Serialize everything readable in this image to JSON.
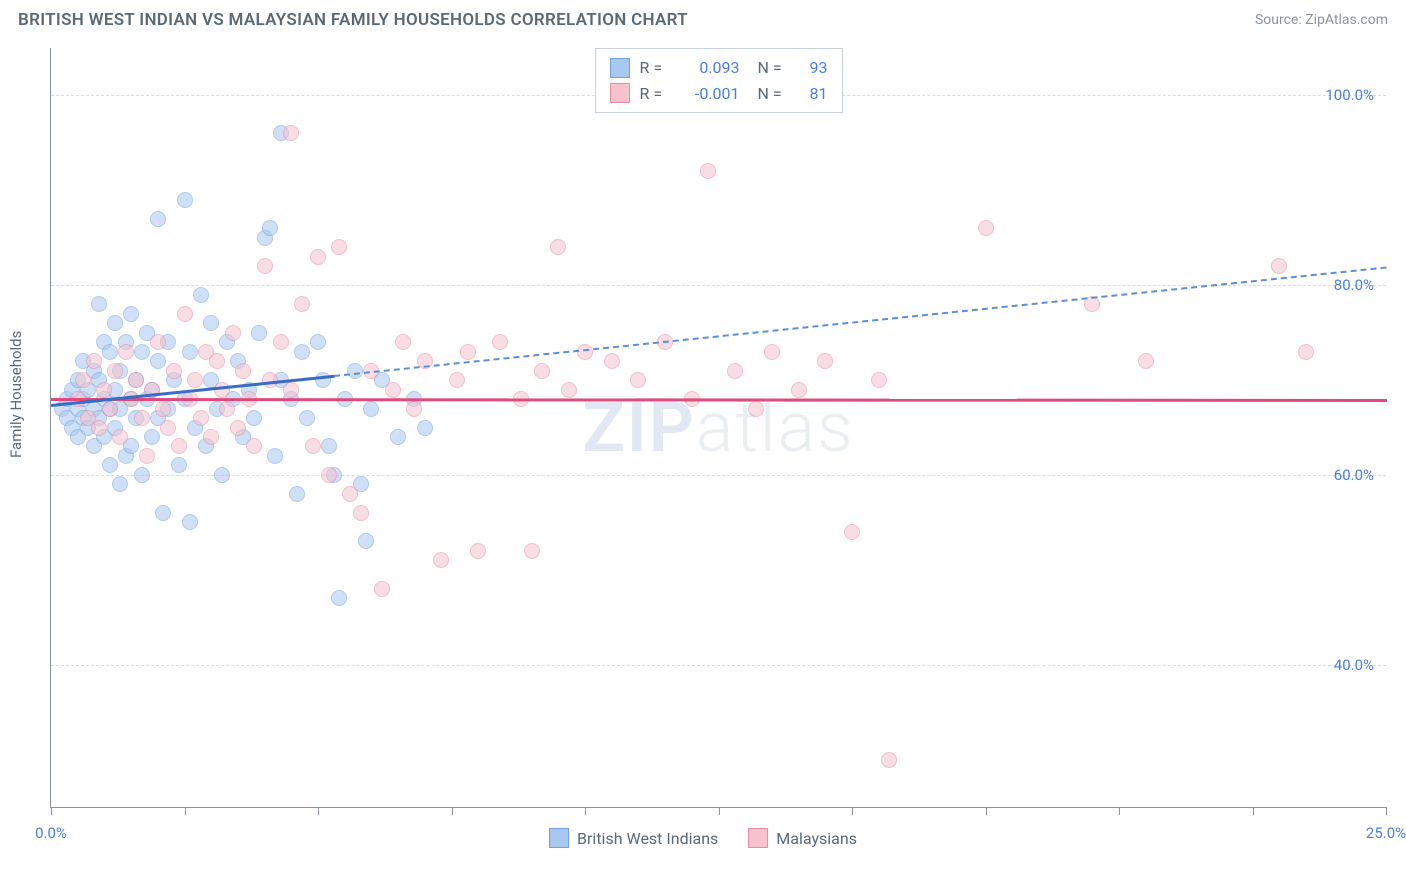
{
  "header": {
    "title": "BRITISH WEST INDIAN VS MALAYSIAN FAMILY HOUSEHOLDS CORRELATION CHART",
    "source": "Source: ZipAtlas.com"
  },
  "watermark": {
    "zip": "ZIP",
    "atlas": "atlas"
  },
  "chart": {
    "type": "scatter",
    "ylabel": "Family Households",
    "xlim": [
      0,
      25
    ],
    "ylim": [
      25,
      105
    ],
    "ytick_values": [
      40,
      60,
      80,
      100
    ],
    "ytick_labels": [
      "40.0%",
      "60.0%",
      "80.0%",
      "100.0%"
    ],
    "xtick_values": [
      0,
      2.5,
      5,
      7.5,
      10,
      12.5,
      15,
      17.5,
      20,
      22.5,
      25
    ],
    "xtick_left_label": "0.0%",
    "xtick_right_label": "25.0%",
    "series": [
      {
        "name": "British West Indians",
        "color_fill": "#a8c8ef",
        "color_stroke": "#6ea3e0",
        "R": "0.093",
        "N": "93",
        "trend": {
          "y_at_x0": 67.5,
          "y_at_x25": 82,
          "solid_until_x": 5.3
        },
        "points": [
          [
            0.2,
            67
          ],
          [
            0.3,
            68
          ],
          [
            0.3,
            66
          ],
          [
            0.4,
            69
          ],
          [
            0.4,
            65
          ],
          [
            0.5,
            67
          ],
          [
            0.5,
            70
          ],
          [
            0.5,
            64
          ],
          [
            0.6,
            68
          ],
          [
            0.6,
            66
          ],
          [
            0.6,
            72
          ],
          [
            0.7,
            65
          ],
          [
            0.7,
            69
          ],
          [
            0.8,
            67
          ],
          [
            0.8,
            63
          ],
          [
            0.8,
            71
          ],
          [
            0.9,
            78
          ],
          [
            0.9,
            66
          ],
          [
            0.9,
            70
          ],
          [
            1.0,
            68
          ],
          [
            1.0,
            74
          ],
          [
            1.0,
            64
          ],
          [
            1.1,
            73
          ],
          [
            1.1,
            67
          ],
          [
            1.1,
            61
          ],
          [
            1.2,
            76
          ],
          [
            1.2,
            69
          ],
          [
            1.2,
            65
          ],
          [
            1.3,
            71
          ],
          [
            1.3,
            67
          ],
          [
            1.3,
            59
          ],
          [
            1.4,
            74
          ],
          [
            1.4,
            62
          ],
          [
            1.5,
            68
          ],
          [
            1.5,
            77
          ],
          [
            1.5,
            63
          ],
          [
            1.6,
            70
          ],
          [
            1.6,
            66
          ],
          [
            1.7,
            73
          ],
          [
            1.7,
            60
          ],
          [
            1.8,
            68
          ],
          [
            1.8,
            75
          ],
          [
            1.9,
            64
          ],
          [
            1.9,
            69
          ],
          [
            2.0,
            87
          ],
          [
            2.0,
            66
          ],
          [
            2.0,
            72
          ],
          [
            2.1,
            56
          ],
          [
            2.2,
            74
          ],
          [
            2.2,
            67
          ],
          [
            2.3,
            70
          ],
          [
            2.4,
            61
          ],
          [
            2.5,
            68
          ],
          [
            2.5,
            89
          ],
          [
            2.6,
            73
          ],
          [
            2.6,
            55
          ],
          [
            2.7,
            65
          ],
          [
            2.8,
            79
          ],
          [
            2.9,
            63
          ],
          [
            3.0,
            70
          ],
          [
            3.0,
            76
          ],
          [
            3.1,
            67
          ],
          [
            3.2,
            60
          ],
          [
            3.3,
            74
          ],
          [
            3.4,
            68
          ],
          [
            3.5,
            72
          ],
          [
            3.6,
            64
          ],
          [
            3.7,
            69
          ],
          [
            3.8,
            66
          ],
          [
            3.9,
            75
          ],
          [
            4.0,
            85
          ],
          [
            4.1,
            86
          ],
          [
            4.2,
            62
          ],
          [
            4.3,
            70
          ],
          [
            4.3,
            96
          ],
          [
            4.5,
            68
          ],
          [
            4.6,
            58
          ],
          [
            4.7,
            73
          ],
          [
            4.8,
            66
          ],
          [
            5.0,
            74
          ],
          [
            5.1,
            70
          ],
          [
            5.2,
            63
          ],
          [
            5.3,
            60
          ],
          [
            5.4,
            47
          ],
          [
            5.5,
            68
          ],
          [
            5.7,
            71
          ],
          [
            5.8,
            59
          ],
          [
            5.9,
            53
          ],
          [
            6.0,
            67
          ],
          [
            6.2,
            70
          ],
          [
            6.5,
            64
          ],
          [
            6.8,
            68
          ],
          [
            7.0,
            65
          ]
        ]
      },
      {
        "name": "Malaysians",
        "color_fill": "#f5c2ce",
        "color_stroke": "#e88ba3",
        "R": "-0.001",
        "N": "81",
        "trend": {
          "y_at_x0": 68.2,
          "y_at_x25": 68.1,
          "solid_until_x": 25
        },
        "trend_line_color": "#e04a7a",
        "points": [
          [
            0.5,
            68
          ],
          [
            0.6,
            70
          ],
          [
            0.7,
            66
          ],
          [
            0.8,
            72
          ],
          [
            0.9,
            65
          ],
          [
            1.0,
            69
          ],
          [
            1.1,
            67
          ],
          [
            1.2,
            71
          ],
          [
            1.3,
            64
          ],
          [
            1.4,
            73
          ],
          [
            1.5,
            68
          ],
          [
            1.6,
            70
          ],
          [
            1.7,
            66
          ],
          [
            1.8,
            62
          ],
          [
            1.9,
            69
          ],
          [
            2.0,
            74
          ],
          [
            2.1,
            67
          ],
          [
            2.2,
            65
          ],
          [
            2.3,
            71
          ],
          [
            2.4,
            63
          ],
          [
            2.5,
            77
          ],
          [
            2.6,
            68
          ],
          [
            2.7,
            70
          ],
          [
            2.8,
            66
          ],
          [
            2.9,
            73
          ],
          [
            3.0,
            64
          ],
          [
            3.1,
            72
          ],
          [
            3.2,
            69
          ],
          [
            3.3,
            67
          ],
          [
            3.4,
            75
          ],
          [
            3.5,
            65
          ],
          [
            3.6,
            71
          ],
          [
            3.7,
            68
          ],
          [
            3.8,
            63
          ],
          [
            4.0,
            82
          ],
          [
            4.1,
            70
          ],
          [
            4.3,
            74
          ],
          [
            4.5,
            69
          ],
          [
            4.5,
            96
          ],
          [
            4.7,
            78
          ],
          [
            4.9,
            63
          ],
          [
            5.0,
            83
          ],
          [
            5.2,
            60
          ],
          [
            5.4,
            84
          ],
          [
            5.6,
            58
          ],
          [
            5.8,
            56
          ],
          [
            6.0,
            71
          ],
          [
            6.2,
            48
          ],
          [
            6.4,
            69
          ],
          [
            6.6,
            74
          ],
          [
            6.8,
            67
          ],
          [
            7.0,
            72
          ],
          [
            7.3,
            51
          ],
          [
            7.6,
            70
          ],
          [
            7.8,
            73
          ],
          [
            8.0,
            52
          ],
          [
            8.4,
            74
          ],
          [
            8.8,
            68
          ],
          [
            9.0,
            52
          ],
          [
            9.2,
            71
          ],
          [
            9.5,
            84
          ],
          [
            9.7,
            69
          ],
          [
            10.0,
            73
          ],
          [
            10.5,
            72
          ],
          [
            11.0,
            70
          ],
          [
            11.5,
            74
          ],
          [
            12.0,
            68
          ],
          [
            12.3,
            92
          ],
          [
            12.8,
            71
          ],
          [
            13.2,
            67
          ],
          [
            13.5,
            73
          ],
          [
            14.0,
            69
          ],
          [
            14.5,
            72
          ],
          [
            15.0,
            54
          ],
          [
            15.5,
            70
          ],
          [
            15.7,
            30
          ],
          [
            17.5,
            86
          ],
          [
            19.5,
            78
          ],
          [
            20.5,
            72
          ],
          [
            23.0,
            82
          ],
          [
            23.5,
            73
          ]
        ]
      }
    ]
  },
  "legend_top": {
    "R_label": "R =",
    "N_label": "N ="
  },
  "legend_bottom": {
    "series1_label": "British West Indians",
    "series2_label": "Malaysians"
  }
}
